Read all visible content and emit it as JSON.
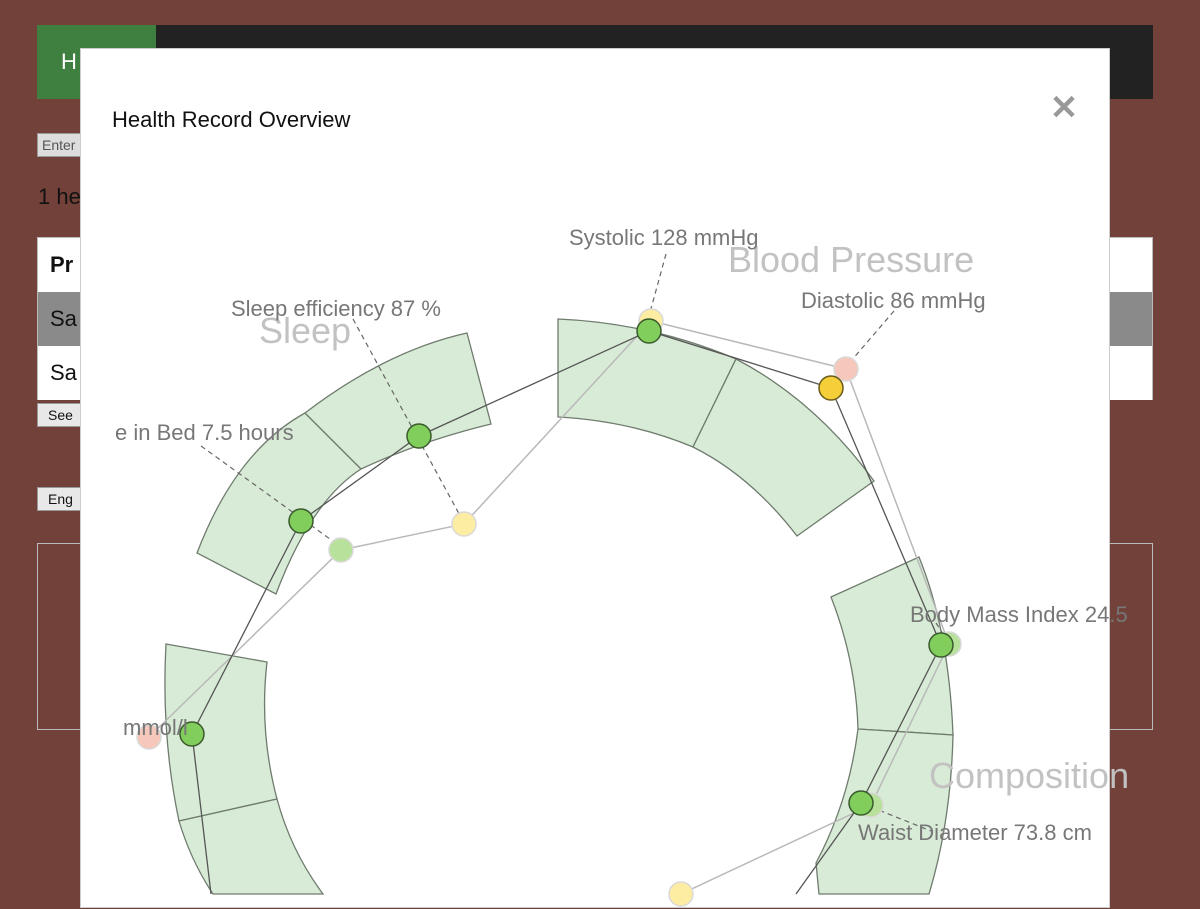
{
  "background": {
    "header_button": "H",
    "search_placeholder": "Enter",
    "count_text": "1 he",
    "table": {
      "header": "Pr",
      "rows": [
        "Sa",
        "Sa"
      ]
    },
    "see_button": "See",
    "lang_button": "Eng"
  },
  "modal": {
    "title": "Health Record Overview",
    "close_symbol": "✕"
  },
  "chart_data": {
    "type": "radial",
    "categories": [
      {
        "name": "Blood Pressure"
      },
      {
        "name": "Sleep"
      },
      {
        "name": "Composition"
      }
    ],
    "metrics": [
      {
        "label": "Systolic 128 mmHg",
        "category": "Blood Pressure",
        "status": "good"
      },
      {
        "label": "Diastolic 86 mmHg",
        "category": "Blood Pressure",
        "status": "warning"
      },
      {
        "label": "Sleep efficiency 87 %",
        "category": "Sleep",
        "status": "good"
      },
      {
        "label": "e in Bed 7.5 hours",
        "category": "Sleep",
        "status": "good"
      },
      {
        "label": "mmol/l",
        "category": "",
        "status": "good"
      },
      {
        "label": "Body Mass Index 24.5",
        "category": "Composition",
        "status": "good"
      },
      {
        "label": "Waist Diameter 73.8 cm",
        "category": "Composition",
        "status": "good"
      }
    ],
    "colors": {
      "band_fill": "#d8ebd6",
      "good": "#82ce5c",
      "warning": "#f5cf3a",
      "previous_warning": "#fdeda2",
      "previous_alert": "#f6c8bc",
      "previous_good": "#b8e29c"
    }
  }
}
